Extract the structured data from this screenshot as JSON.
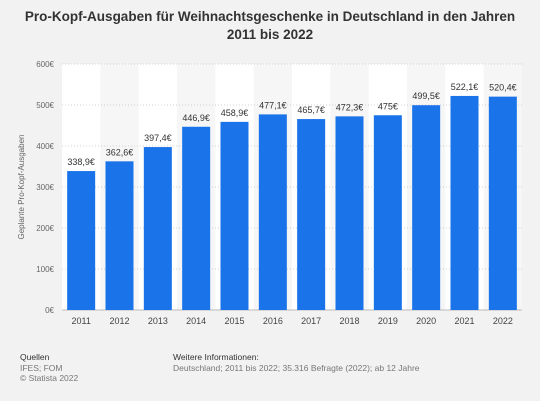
{
  "chart_data": {
    "type": "bar",
    "title": "Pro-Kopf-Ausgaben für Weihnachtsgeschenke in Deutschland in den Jahren 2011 bis 2022",
    "ylabel": "Geplante Pro-Kopf-Ausgaben",
    "xlabel": "",
    "categories": [
      "2011",
      "2012",
      "2013",
      "2014",
      "2015",
      "2016",
      "2017",
      "2018",
      "2019",
      "2020",
      "2021",
      "2022"
    ],
    "values": [
      338.9,
      362.6,
      397.4,
      446.9,
      458.9,
      477.1,
      465.7,
      472.3,
      475,
      499.5,
      522.1,
      520.4
    ],
    "value_labels": [
      "338,9€",
      "362,6€",
      "397,4€",
      "446,9€",
      "458,9€",
      "477,1€",
      "465,7€",
      "472,3€",
      "475€",
      "499,5€",
      "522,1€",
      "520,4€"
    ],
    "ylim": [
      0,
      600
    ],
    "yticks": [
      0,
      100,
      200,
      300,
      400,
      500,
      600
    ],
    "ytick_labels": [
      "0€",
      "100€",
      "200€",
      "300€",
      "400€",
      "500€",
      "600€"
    ],
    "grid": true,
    "colors": {
      "bar": "#1a73e8",
      "plot_bg": "#ffffff",
      "band_bg": "#f6f6f6",
      "page_bg": "#f2f2f2",
      "grid": "#d0d0d0"
    }
  },
  "footer": {
    "sources_heading": "Quellen",
    "sources": [
      "IFES; FOM",
      "© Statista 2022"
    ],
    "info_heading": "Weitere Informationen:",
    "info": "Deutschland; 2011 bis 2022; 35.316 Befragte (2022); ab 12 Jahre"
  }
}
